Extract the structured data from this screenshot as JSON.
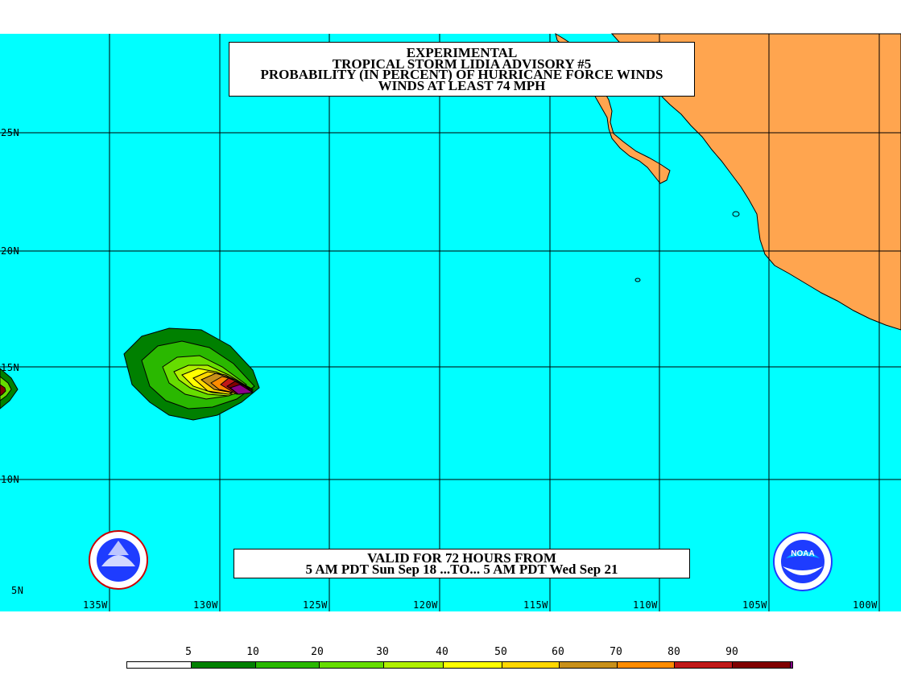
{
  "title_lines": [
    "EXPERIMENTAL",
    "TROPICAL STORM LIDIA ADVISORY #5",
    "PROBABILITY (IN PERCENT) OF HURRICANE FORCE WINDS",
    "WINDS AT LEAST 74 MPH"
  ],
  "valid_lines": [
    "VALID FOR 72 HOURS FROM",
    "5 AM PDT Sun Sep 18 ...TO... 5 AM PDT Wed Sep 21"
  ],
  "lon_labels": [
    "135W",
    "130W",
    "125W",
    "120W",
    "115W",
    "110W",
    "105W",
    "100W"
  ],
  "lat_labels": [
    "25N",
    "20N",
    "15N",
    "10N",
    "5N"
  ],
  "colors": {
    "ocean": "#00ffff",
    "land": "#ffa54f",
    "grid": "#000000"
  },
  "legend": {
    "labels": [
      "5",
      "10",
      "20",
      "30",
      "40",
      "50",
      "60",
      "70",
      "80",
      "90"
    ],
    "colors": [
      "#ffffff",
      "#008000",
      "#2ab800",
      "#66dd00",
      "#b0f000",
      "#ffff00",
      "#ffd700",
      "#c8901a",
      "#ff8c00",
      "#c01818",
      "#800000",
      "#8b008b"
    ]
  },
  "logos": [
    "nws-logo",
    "noaa-logo"
  ]
}
